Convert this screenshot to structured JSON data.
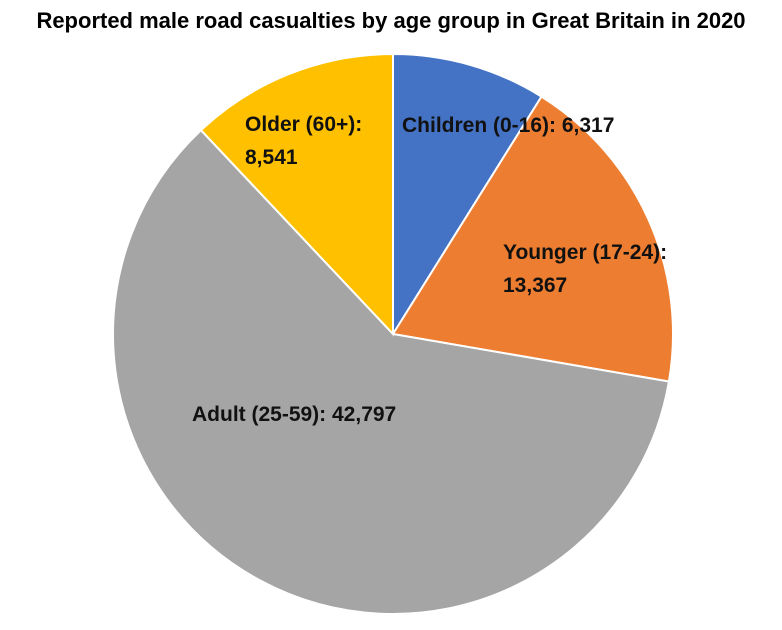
{
  "chart_data": {
    "type": "pie",
    "title": "Reported male road casualties by age group in Great Britain in 2020",
    "slices": [
      {
        "label": "Children (0-16)",
        "value": 6317,
        "value_text": "6,317",
        "color": "#4472C4"
      },
      {
        "label": "Younger (17-24)",
        "value": 13367,
        "value_text": "13,367",
        "color": "#ED7D31"
      },
      {
        "label": "Adult (25-59)",
        "value": 42797,
        "value_text": "42,797",
        "color": "#A5A5A5"
      },
      {
        "label": "Older (60+)",
        "value": 8541,
        "value_text": "8,541",
        "color": "#FFC000"
      }
    ],
    "data_labels": true,
    "legend": "none"
  }
}
